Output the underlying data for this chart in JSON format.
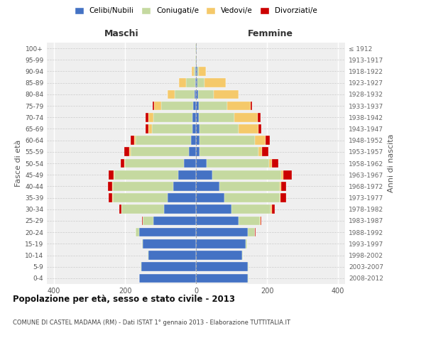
{
  "age_groups": [
    "0-4",
    "5-9",
    "10-14",
    "15-19",
    "20-24",
    "25-29",
    "30-34",
    "35-39",
    "40-44",
    "45-49",
    "50-54",
    "55-59",
    "60-64",
    "65-69",
    "70-74",
    "75-79",
    "80-84",
    "85-89",
    "90-94",
    "95-99",
    "100+"
  ],
  "birth_years": [
    "2008-2012",
    "2003-2007",
    "1998-2002",
    "1993-1997",
    "1988-1992",
    "1983-1987",
    "1978-1982",
    "1973-1977",
    "1968-1972",
    "1963-1967",
    "1958-1962",
    "1953-1957",
    "1948-1952",
    "1943-1947",
    "1938-1942",
    "1933-1937",
    "1928-1932",
    "1923-1927",
    "1918-1922",
    "1913-1917",
    "≤ 1912"
  ],
  "male_celibe": [
    160,
    155,
    135,
    150,
    160,
    120,
    90,
    80,
    65,
    50,
    35,
    20,
    15,
    10,
    10,
    8,
    5,
    3,
    2,
    1,
    1
  ],
  "male_coniugato": [
    1,
    1,
    1,
    2,
    10,
    30,
    120,
    155,
    170,
    180,
    165,
    165,
    155,
    115,
    110,
    90,
    55,
    25,
    5,
    1,
    1
  ],
  "male_vedovo": [
    0,
    1,
    0,
    0,
    0,
    1,
    1,
    1,
    1,
    2,
    2,
    3,
    5,
    10,
    15,
    20,
    20,
    20,
    5,
    0,
    0
  ],
  "male_divorziato": [
    0,
    0,
    0,
    0,
    1,
    2,
    5,
    10,
    12,
    15,
    10,
    15,
    10,
    8,
    8,
    5,
    0,
    0,
    0,
    0,
    0
  ],
  "female_celibe": [
    145,
    145,
    130,
    140,
    145,
    120,
    100,
    80,
    65,
    45,
    30,
    10,
    10,
    10,
    8,
    8,
    5,
    3,
    3,
    1,
    1
  ],
  "female_coniugata": [
    2,
    2,
    2,
    3,
    20,
    60,
    110,
    155,
    170,
    195,
    175,
    165,
    155,
    110,
    100,
    80,
    45,
    20,
    5,
    1,
    1
  ],
  "female_vedova": [
    0,
    0,
    0,
    0,
    1,
    2,
    3,
    3,
    4,
    5,
    8,
    10,
    30,
    55,
    65,
    65,
    70,
    60,
    20,
    0,
    0
  ],
  "female_divorziata": [
    0,
    0,
    0,
    0,
    1,
    2,
    8,
    15,
    15,
    25,
    18,
    18,
    12,
    8,
    8,
    5,
    0,
    0,
    0,
    0,
    0
  ],
  "colors": {
    "celibe": "#4472C4",
    "coniugato": "#C5D9A0",
    "vedovo": "#F5C96A",
    "divorziato": "#CC0000"
  },
  "title_main": "Popolazione per età, sesso e stato civile - 2013",
  "title_sub": "COMUNE DI CASTEL MADAMA (RM) - Dati ISTAT 1° gennaio 2013 - Elaborazione TUTTITALIA.IT",
  "xlabel_left": "Maschi",
  "xlabel_right": "Femmine",
  "ylabel_left": "Fasce di età",
  "ylabel_right": "Anni di nascita",
  "legend_labels": [
    "Celibi/Nubili",
    "Coniugati/e",
    "Vedovi/e",
    "Divorziati/e"
  ],
  "xlim": 420,
  "bg_color": "#FFFFFF",
  "plot_bg": "#EFEFEF"
}
